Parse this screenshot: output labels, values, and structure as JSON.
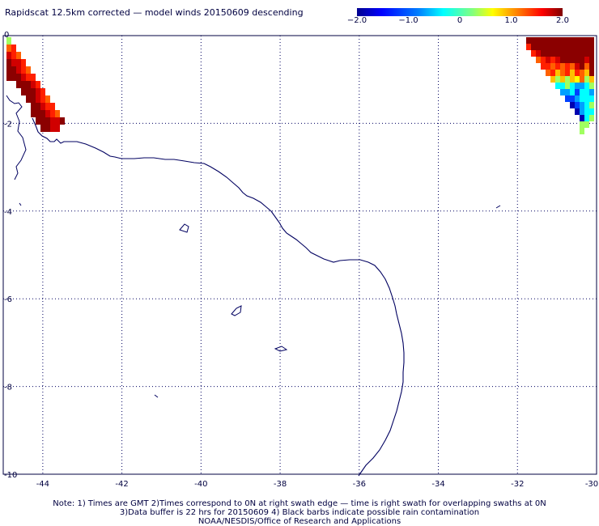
{
  "title": "Rapidscat 12.5km corrected — model winds 20150609 descending",
  "colorbar": {
    "ticks": [
      "−2.0",
      "−1.0",
      "0",
      "1.0",
      "2.0"
    ],
    "tick_values": [
      -2.0,
      -1.0,
      0,
      1.0,
      2.0
    ],
    "range": [
      -2.0,
      2.0
    ],
    "colors": [
      "#00008f",
      "#0000ff",
      "#0080ff",
      "#00ffff",
      "#80ff80",
      "#ffff00",
      "#ff8000",
      "#ff0000",
      "#800000"
    ]
  },
  "map": {
    "lon_range": [
      -45,
      -30
    ],
    "lat_range": [
      -10,
      0
    ],
    "lon_ticks": [
      "-44",
      "-42",
      "-40",
      "-38",
      "-36",
      "-34",
      "-32",
      "-30"
    ],
    "lon_tick_values": [
      -44,
      -42,
      -40,
      -38,
      -36,
      -34,
      -32,
      -30
    ],
    "lat_ticks": [
      "0",
      "-2",
      "-4",
      "-6",
      "-8",
      "-10"
    ],
    "lat_tick_values": [
      0,
      -2,
      -4,
      -6,
      -8,
      -10
    ],
    "gridlines": "dotted",
    "coastline_color": "#000060"
  },
  "notes": [
    "Note: 1) Times are GMT 2)Times correspond to 0N at right swath edge — time is right swath for overlapping swaths at 0N",
    "3)Data buffer is 22 hrs for 20150609 4) Black barbs indicate possible rain contamination",
    "NOAA/NESDIS/Office of Research and Applications"
  ]
}
